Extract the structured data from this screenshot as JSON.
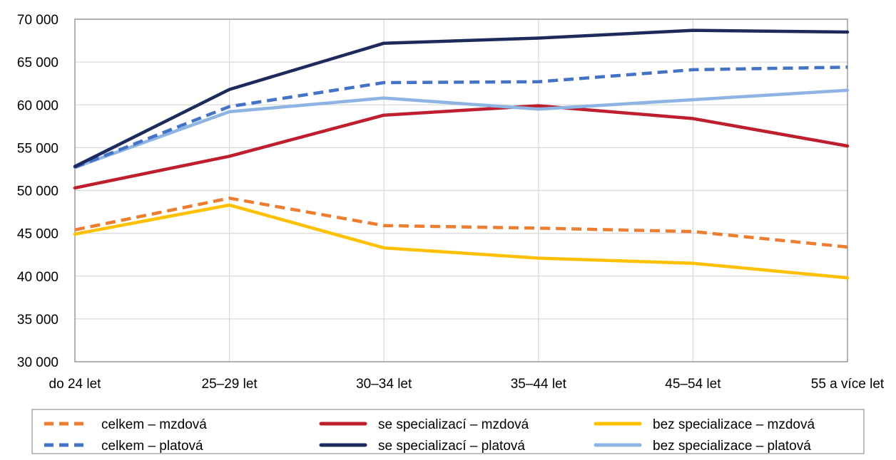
{
  "chart_data": {
    "type": "line",
    "categories": [
      "do 24 let",
      "25–29 let",
      "30–34 let",
      "35–44 let",
      "45–54 let",
      "55 a více let"
    ],
    "ylim": [
      30000,
      70000
    ],
    "y_ticks": [
      30000,
      35000,
      40000,
      45000,
      50000,
      55000,
      60000,
      65000,
      70000
    ],
    "y_tick_labels": [
      "30 000",
      "35 000",
      "40 000",
      "45 000",
      "50 000",
      "55 000",
      "60 000",
      "65 000",
      "70 000"
    ],
    "grid": true,
    "legend_placement": "bottom",
    "series": [
      {
        "name": "celkem – mzdová",
        "values": [
          45400,
          49100,
          45900,
          45600,
          45200,
          43400
        ],
        "color": "#ED7D31",
        "dash": true
      },
      {
        "name": "se specializací – mzdová",
        "values": [
          50300,
          54000,
          58800,
          59900,
          58400,
          55200
        ],
        "color": "#BE1E2D",
        "dash": false
      },
      {
        "name": "bez specializace – mzdová",
        "values": [
          44900,
          48300,
          43300,
          42100,
          41500,
          39800
        ],
        "color": "#FFC000",
        "dash": false
      },
      {
        "name": "celkem – platová",
        "values": [
          52700,
          59800,
          62600,
          62700,
          64100,
          64400
        ],
        "color": "#4472C4",
        "dash": true
      },
      {
        "name": "se specializací – platová",
        "values": [
          52800,
          61800,
          67200,
          67800,
          68700,
          68500
        ],
        "color": "#1F2A5C",
        "dash": false
      },
      {
        "name": "bez specializace – platová",
        "values": [
          52700,
          59200,
          60800,
          59500,
          60600,
          61700
        ],
        "color": "#8EB4E3",
        "dash": false
      }
    ]
  }
}
